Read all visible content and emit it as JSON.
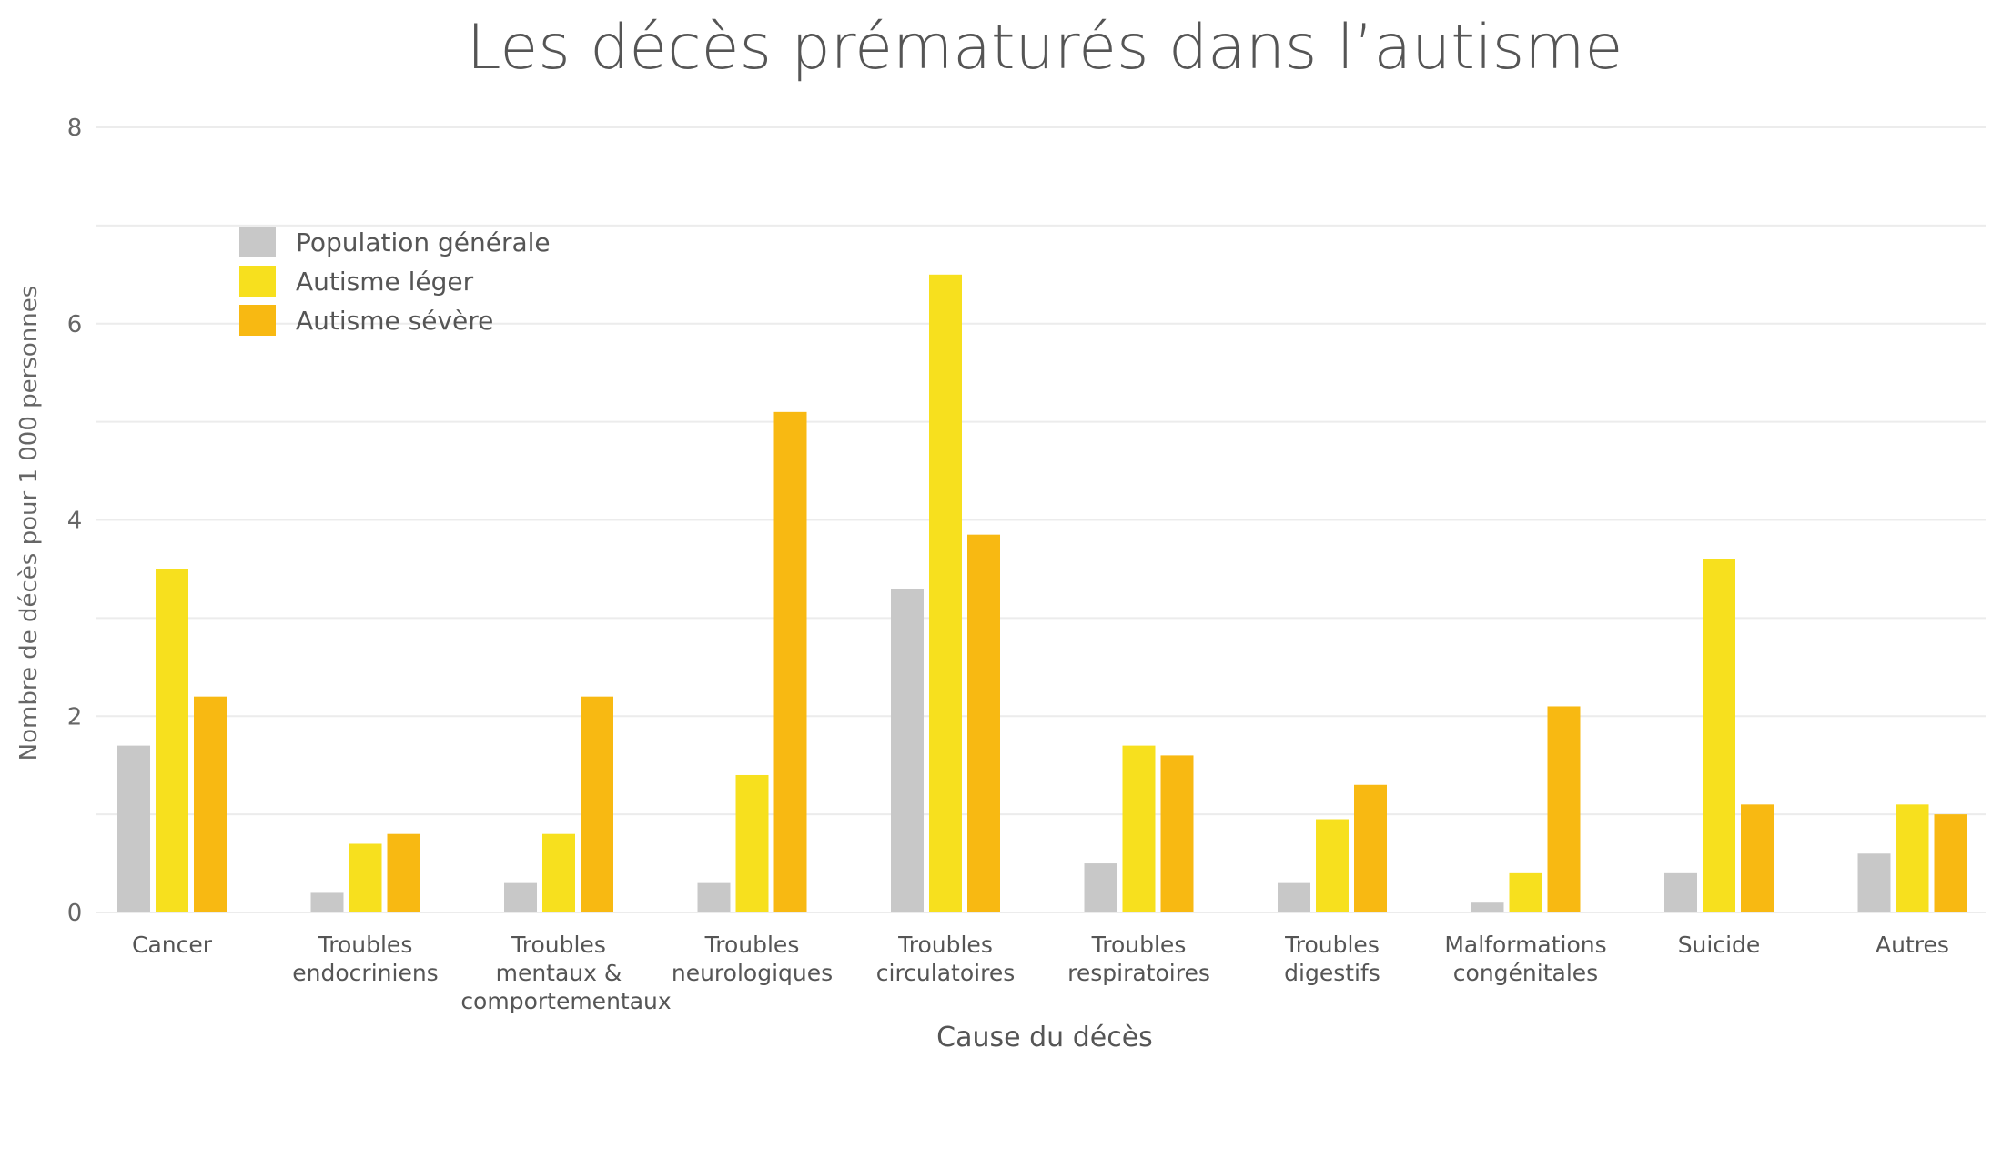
{
  "chart_data": {
    "type": "bar",
    "title": "Les décès prématurés dans l’autisme",
    "xlabel": "Cause du décès",
    "ylabel": "Nombre de décès pour 1 000 personnes",
    "ylim": [
      0,
      8
    ],
    "yticks": [
      "0",
      "2",
      "4",
      "6",
      "8"
    ],
    "grid": true,
    "legend_position": "top-left",
    "categories": [
      [
        "Cancer"
      ],
      [
        "Troubles",
        "endocriniens"
      ],
      [
        "Troubles",
        "mentaux &",
        "comportementaux"
      ],
      [
        "Troubles",
        "neurologiques"
      ],
      [
        "Troubles",
        "circulatoires"
      ],
      [
        "Troubles",
        "respiratoires"
      ],
      [
        "Troubles",
        "digestifs"
      ],
      [
        "Malformations",
        "congénitales"
      ],
      [
        "Suicide"
      ],
      [
        "Autres"
      ]
    ],
    "series": [
      {
        "name": "Population générale",
        "color": "#c8c8c8",
        "values": [
          1.7,
          0.2,
          0.3,
          0.3,
          3.3,
          0.5,
          0.3,
          0.1,
          0.4,
          0.6
        ]
      },
      {
        "name": "Autisme léger",
        "color": "#f7e01e",
        "values": [
          3.5,
          0.7,
          0.8,
          1.4,
          6.5,
          1.7,
          0.95,
          0.4,
          3.6,
          1.1
        ]
      },
      {
        "name": "Autisme sévère",
        "color": "#f8b912",
        "values": [
          2.2,
          0.8,
          2.2,
          5.1,
          3.85,
          1.6,
          1.3,
          2.1,
          1.1,
          1.0
        ]
      }
    ]
  }
}
